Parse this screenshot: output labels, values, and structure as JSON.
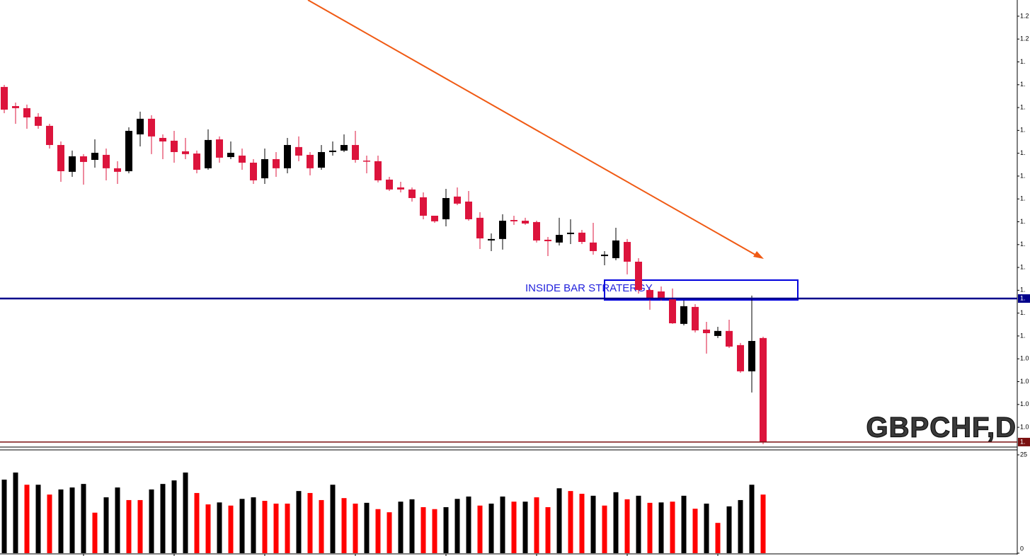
{
  "chart_data": [
    {
      "type": "candlestick",
      "title": "GBPCHF,D",
      "annotation": "INSIDE BAR STRATERGY",
      "up_color": "#000000",
      "down_color": "#dc143c",
      "open": [
        1.241,
        1.228,
        1.2266,
        1.2208,
        1.2146,
        1.2016,
        1.1834,
        1.1939,
        1.1915,
        1.1949,
        1.1858,
        1.1838,
        1.2088,
        1.2194,
        1.2064,
        1.2045,
        1.1973,
        1.1958,
        1.1858,
        1.2054,
        1.1934,
        1.1944,
        1.1896,
        1.179,
        1.192,
        1.1858,
        1.2002,
        1.1949,
        1.1862,
        1.1968,
        1.1978,
        1.2016,
        1.191,
        1.1906,
        1.1781,
        1.1728,
        1.1714,
        1.1661,
        1.1536,
        1.1512,
        1.1666,
        1.1632,
        1.1522,
        1.1368,
        1.1378,
        1.1507,
        1.1502,
        1.1493,
        1.1373,
        1.1354,
        1.1411,
        1.1421,
        1.1354,
        1.1262,
        1.1248,
        1.1358,
        1.1224,
        1.1032,
        1.1022,
        1.0974,
        1.0802,
        1.0917,
        1.0763,
        1.072,
        1.0754,
        1.0658,
        1.048,
        1.0706
      ],
      "high": [
        1.2424,
        1.2304,
        1.229,
        1.2232,
        1.216,
        1.204,
        1.1978,
        1.1954,
        1.2054,
        1.1992,
        1.1906,
        1.2136,
        1.2242,
        1.2218,
        1.2088,
        1.2112,
        1.2064,
        1.1978,
        1.2122,
        1.2074,
        1.204,
        1.1992,
        1.192,
        1.1992,
        1.1968,
        1.2064,
        1.2074,
        1.1968,
        1.2016,
        1.204,
        1.2088,
        1.2112,
        1.1944,
        1.1944,
        1.18,
        1.1766,
        1.1728,
        1.1694,
        1.1536,
        1.1718,
        1.1728,
        1.1704,
        1.156,
        1.1416,
        1.1546,
        1.1536,
        1.1522,
        1.1502,
        1.1392,
        1.1522,
        1.1512,
        1.144,
        1.1488,
        1.1296,
        1.1454,
        1.1378,
        1.1248,
        1.1042,
        1.1056,
        1.1042,
        1.096,
        1.0936,
        1.0816,
        1.0782,
        1.083,
        1.0672,
        1.0994,
        1.0715
      ],
      "low": [
        1.2232,
        1.216,
        1.2126,
        1.2126,
        1.1992,
        1.1766,
        1.18,
        1.1747,
        1.1862,
        1.1776,
        1.1752,
        1.1824,
        1.2006,
        1.1954,
        1.192,
        1.1896,
        1.192,
        1.1824,
        1.1848,
        1.1896,
        1.192,
        1.1848,
        1.1752,
        1.1752,
        1.18,
        1.1824,
        1.1906,
        1.181,
        1.1848,
        1.1944,
        1.1968,
        1.1896,
        1.1824,
        1.1762,
        1.1704,
        1.1694,
        1.1632,
        1.1512,
        1.1488,
        1.1464,
        1.1608,
        1.1502,
        1.131,
        1.1296,
        1.1306,
        1.1474,
        1.1474,
        1.1354,
        1.1262,
        1.1334,
        1.1344,
        1.1344,
        1.1272,
        1.12,
        1.1234,
        1.1138,
        1.1008,
        1.0898,
        1.096,
        1.0802,
        1.0792,
        1.0744,
        1.06,
        1.0706,
        1.0638,
        1.047,
        1.0336,
        0.9986
      ],
      "close": [
        1.2256,
        1.2266,
        1.2203,
        1.2146,
        1.2016,
        1.1838,
        1.1939,
        1.1901,
        1.1963,
        1.1858,
        1.1834,
        1.2112,
        1.2194,
        1.2074,
        1.204,
        1.1968,
        1.1954,
        1.1848,
        1.205,
        1.193,
        1.1963,
        1.1896,
        1.1776,
        1.192,
        1.1858,
        1.2016,
        1.1944,
        1.1858,
        1.1968,
        1.1978,
        1.2016,
        1.1915,
        1.1906,
        1.1776,
        1.1714,
        1.1714,
        1.1656,
        1.1536,
        1.1498,
        1.1656,
        1.1618,
        1.1512,
        1.1382,
        1.1378,
        1.1502,
        1.1498,
        1.1483,
        1.1368,
        1.1363,
        1.1406,
        1.1421,
        1.1358,
        1.1296,
        1.1272,
        1.1368,
        1.1224,
        1.1032,
        1.0974,
        1.0979,
        1.0806,
        1.0922,
        1.0758,
        1.0739,
        1.0754,
        1.0648,
        1.048,
        1.0686,
        1.0
      ],
      "ylim": [
        0.9966,
        1.3
      ],
      "yticks": [
        {
          "value": 1.289,
          "label": "1.2"
        },
        {
          "value": 1.2735,
          "label": "1.2"
        },
        {
          "value": 1.258,
          "label": "1."
        },
        {
          "value": 1.2425,
          "label": "1."
        },
        {
          "value": 1.227,
          "label": "1."
        },
        {
          "value": 1.2115,
          "label": "1."
        },
        {
          "value": 1.196,
          "label": "1."
        },
        {
          "value": 1.1805,
          "label": "1."
        },
        {
          "value": 1.165,
          "label": "1."
        },
        {
          "value": 1.1495,
          "label": "1."
        },
        {
          "value": 1.134,
          "label": "1."
        },
        {
          "value": 1.1185,
          "label": "1."
        },
        {
          "value": 1.103,
          "label": "1."
        },
        {
          "value": 1.0875,
          "label": "1."
        },
        {
          "value": 1.072,
          "label": "1."
        },
        {
          "value": 1.0565,
          "label": "1.0"
        },
        {
          "value": 1.041,
          "label": "1.0"
        },
        {
          "value": 1.0255,
          "label": "1.0"
        },
        {
          "value": 1.01,
          "label": "1.0"
        }
      ],
      "price_lines": [
        {
          "value": 1.0974,
          "label": "1.",
          "color": "#00008b"
        },
        {
          "value": 1.0,
          "label": "1.",
          "color": "#7a1010"
        }
      ]
    },
    {
      "type": "bar",
      "values": [
        18.7,
        20.5,
        17.4,
        17.4,
        14.9,
        16.2,
        16.7,
        17.6,
        10.3,
        14.2,
        16.7,
        13.5,
        13.5,
        16.2,
        17.6,
        18.5,
        20.5,
        15.3,
        12.4,
        12.9,
        12.1,
        13.8,
        14.2,
        13.3,
        12.6,
        12.6,
        15.8,
        15.3,
        13.5,
        17.4,
        14.0,
        12.6,
        12.8,
        11.2,
        10.4,
        13.1,
        13.7,
        11.7,
        11.2,
        11.7,
        13.8,
        14.4,
        12.1,
        12.6,
        14.4,
        13.1,
        13.1,
        14.2,
        11.7,
        16.5,
        15.8,
        15.1,
        14.6,
        12.1,
        15.5,
        13.7,
        14.6,
        12.8,
        12.9,
        13.1,
        14.6,
        11.3,
        12.6,
        7.7,
        11.9,
        13.5,
        17.4,
        14.9
      ],
      "colors": [
        "#000000",
        "#000000",
        "#ff0000",
        "#000000",
        "#ff0000",
        "#000000",
        "#000000",
        "#000000",
        "#ff0000",
        "#000000",
        "#000000",
        "#ff0000",
        "#ff0000",
        "#000000",
        "#000000",
        "#000000",
        "#000000",
        "#ff0000",
        "#ff0000",
        "#000000",
        "#ff0000",
        "#000000",
        "#000000",
        "#ff0000",
        "#ff0000",
        "#ff0000",
        "#000000",
        "#ff0000",
        "#ff0000",
        "#000000",
        "#ff0000",
        "#ff0000",
        "#000000",
        "#ff0000",
        "#ff0000",
        "#000000",
        "#000000",
        "#ff0000",
        "#ff0000",
        "#000000",
        "#000000",
        "#000000",
        "#ff0000",
        "#000000",
        "#000000",
        "#ff0000",
        "#000000",
        "#ff0000",
        "#ff0000",
        "#000000",
        "#ff0000",
        "#ff0000",
        "#000000",
        "#ff0000",
        "#000000",
        "#ff0000",
        "#000000",
        "#ff0000",
        "#000000",
        "#ff0000",
        "#000000",
        "#ff0000",
        "#000000",
        "#ff0000",
        "#000000",
        "#000000",
        "#000000",
        "#ff0000"
      ],
      "ylim": [
        0,
        26.26
      ],
      "yticks": [
        0,
        25
      ]
    }
  ]
}
